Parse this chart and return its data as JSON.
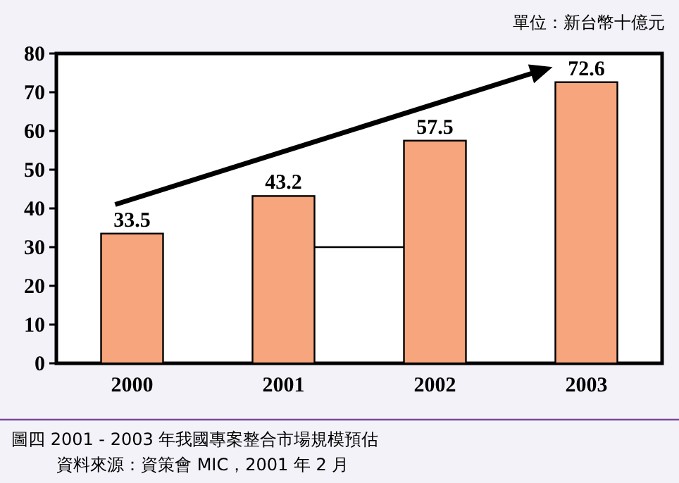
{
  "chart_data": {
    "type": "bar",
    "categories": [
      "2000",
      "2001",
      "2002",
      "2003"
    ],
    "values": [
      33.5,
      43.2,
      57.5,
      72.6
    ],
    "color": "#f6a57c",
    "data_labels": true,
    "ylim": [
      0,
      80
    ],
    "yticks": [
      0,
      10,
      20,
      30,
      40,
      50,
      60,
      70,
      80
    ],
    "annotations": [
      "單位：新台幣十億元",
      "圖四  2001 - 2003 年我國專案整合市場規模預估",
      "資料來源：資策會 MIC，2001 年 2 月"
    ]
  }
}
